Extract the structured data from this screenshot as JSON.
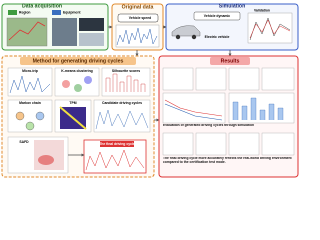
{
  "data_acquisition": {
    "title": "Data acquisition",
    "items": [
      "Region",
      "Equipment"
    ]
  },
  "original_data": {
    "title": "Original data",
    "label": "Vehicle speed"
  },
  "simulation": {
    "title": "Simulation",
    "labels": [
      "Vehicle dynamic",
      "Validation",
      "Electric vehicle"
    ]
  },
  "method": {
    "title": "Method for generating driving cycles",
    "steps": [
      "Micro-trip",
      "K-means clustering",
      "Silhouette scores",
      "Markov chain",
      "TPM",
      "Candidate driving cycles",
      "SAFD",
      "The final driving cycle"
    ]
  },
  "results": {
    "title": "Results",
    "notes": [
      "Evaluation of generated driving cycles through simulation",
      "The final driving cycle more accurately reflects the real-world driving environment compared to the certification test mode."
    ]
  }
}
